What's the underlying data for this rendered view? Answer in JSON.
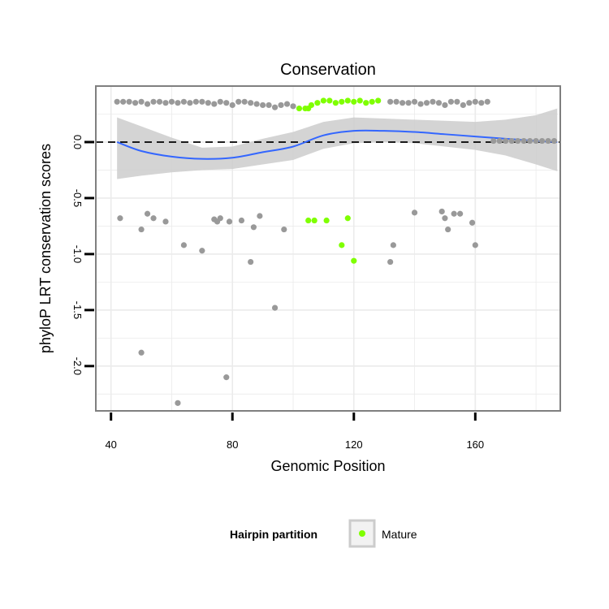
{
  "chart_data": {
    "type": "scatter",
    "title": "Conservation",
    "xlabel": "Genomic Position",
    "ylabel": "phyloP LRT conservation scores",
    "xlim": [
      35,
      188
    ],
    "ylim": [
      -2.4,
      0.5
    ],
    "x_ticks": [
      40,
      80,
      120,
      160
    ],
    "y_ticks": [
      0.0,
      -0.5,
      -1.0,
      -1.5,
      -2.0
    ],
    "y_tick_labels": [
      "0.0",
      "-0.5",
      "-1.0",
      "-1.5",
      "-2.0"
    ],
    "grid": true,
    "reference_line": {
      "y": 0,
      "style": "dashed",
      "color": "#000000"
    },
    "colors": {
      "other": "#999999",
      "mature": "#7fff00",
      "smooth_line": "#3366ff",
      "confidence_band": "#cccccc",
      "panel_border": "#7f7f7f",
      "grid": "#ebebeb"
    },
    "series": [
      {
        "points": [
          [
            42,
            0.36
          ],
          [
            44,
            0.36
          ],
          [
            46,
            0.36
          ],
          [
            48,
            0.35
          ],
          [
            50,
            0.36
          ],
          [
            52,
            0.34
          ],
          [
            54,
            0.36
          ],
          [
            56,
            0.36
          ],
          [
            58,
            0.35
          ],
          [
            60,
            0.36
          ],
          [
            62,
            0.35
          ],
          [
            64,
            0.36
          ],
          [
            66,
            0.35
          ],
          [
            68,
            0.36
          ],
          [
            70,
            0.36
          ],
          [
            72,
            0.35
          ],
          [
            74,
            0.34
          ],
          [
            76,
            0.36
          ],
          [
            78,
            0.35
          ],
          [
            80,
            0.33
          ],
          [
            82,
            0.36
          ],
          [
            84,
            0.36
          ],
          [
            86,
            0.35
          ],
          [
            88,
            0.34
          ],
          [
            90,
            0.33
          ],
          [
            92,
            0.33
          ],
          [
            94,
            0.31
          ],
          [
            96,
            0.33
          ],
          [
            98,
            0.34
          ],
          [
            100,
            0.32
          ],
          [
            132,
            0.36
          ],
          [
            134,
            0.36
          ],
          [
            136,
            0.35
          ],
          [
            138,
            0.35
          ],
          [
            140,
            0.36
          ],
          [
            142,
            0.34
          ],
          [
            144,
            0.35
          ],
          [
            146,
            0.36
          ],
          [
            148,
            0.35
          ],
          [
            150,
            0.33
          ],
          [
            152,
            0.36
          ],
          [
            154,
            0.36
          ],
          [
            156,
            0.33
          ],
          [
            158,
            0.35
          ],
          [
            160,
            0.36
          ],
          [
            162,
            0.35
          ],
          [
            164,
            0.36
          ],
          [
            166,
            0.01
          ],
          [
            168,
            0.01
          ],
          [
            170,
            0.01
          ],
          [
            172,
            0.01
          ],
          [
            174,
            0.01
          ],
          [
            176,
            0.01
          ],
          [
            178,
            0.01
          ],
          [
            180,
            0.01
          ],
          [
            182,
            0.01
          ],
          [
            184,
            0.01
          ],
          [
            186,
            0.01
          ],
          [
            43,
            -0.68
          ],
          [
            50,
            -0.78
          ],
          [
            50,
            -1.88
          ],
          [
            52,
            -0.64
          ],
          [
            54,
            -0.68
          ],
          [
            58,
            -0.71
          ],
          [
            62,
            -2.33
          ],
          [
            64,
            -0.92
          ],
          [
            70,
            -0.97
          ],
          [
            74,
            -0.69
          ],
          [
            75,
            -0.71
          ],
          [
            76,
            -0.68
          ],
          [
            78,
            -2.1
          ],
          [
            79,
            -0.71
          ],
          [
            83,
            -0.7
          ],
          [
            86,
            -1.07
          ],
          [
            87,
            -0.76
          ],
          [
            89,
            -0.66
          ],
          [
            94,
            -1.48
          ],
          [
            97,
            -0.78
          ],
          [
            132,
            -1.07
          ],
          [
            133,
            -0.92
          ],
          [
            140,
            -0.63
          ],
          [
            149,
            -0.62
          ],
          [
            150,
            -0.68
          ],
          [
            151,
            -0.78
          ],
          [
            153,
            -0.64
          ],
          [
            155,
            -0.64
          ],
          [
            159,
            -0.72
          ],
          [
            160,
            -0.92
          ]
        ]
      },
      {
        "name": "Mature",
        "points": [
          [
            102,
            0.3
          ],
          [
            104,
            0.3
          ],
          [
            106,
            0.33
          ],
          [
            108,
            0.35
          ],
          [
            110,
            0.37
          ],
          [
            112,
            0.37
          ],
          [
            114,
            0.35
          ],
          [
            116,
            0.36
          ],
          [
            118,
            0.37
          ],
          [
            120,
            0.36
          ],
          [
            122,
            0.37
          ],
          [
            124,
            0.35
          ],
          [
            126,
            0.36
          ],
          [
            128,
            0.37
          ],
          [
            105,
            0.3
          ],
          [
            105,
            -0.7
          ],
          [
            107,
            -0.7
          ],
          [
            111,
            -0.7
          ],
          [
            116,
            -0.92
          ],
          [
            118,
            -0.68
          ],
          [
            120,
            -1.06
          ]
        ]
      }
    ],
    "smooth": {
      "x": [
        42,
        50,
        60,
        70,
        80,
        90,
        100,
        110,
        120,
        130,
        140,
        150,
        160,
        170,
        180,
        187
      ],
      "y": [
        0.0,
        -0.08,
        -0.13,
        -0.15,
        -0.14,
        -0.09,
        -0.04,
        0.06,
        0.1,
        0.1,
        0.09,
        0.07,
        0.05,
        0.03,
        0.01,
        0.0
      ],
      "lower": [
        -0.33,
        -0.3,
        -0.27,
        -0.25,
        -0.24,
        -0.2,
        -0.16,
        -0.06,
        -0.01,
        0.0,
        -0.01,
        -0.04,
        -0.07,
        -0.12,
        -0.2,
        -0.26
      ],
      "upper": [
        0.22,
        0.14,
        0.04,
        -0.05,
        -0.04,
        0.03,
        0.09,
        0.18,
        0.22,
        0.21,
        0.2,
        0.19,
        0.18,
        0.2,
        0.24,
        0.3
      ]
    },
    "legend": {
      "title": "Hairpin partition",
      "entries": [
        "Mature"
      ],
      "placement": "bottom"
    }
  }
}
